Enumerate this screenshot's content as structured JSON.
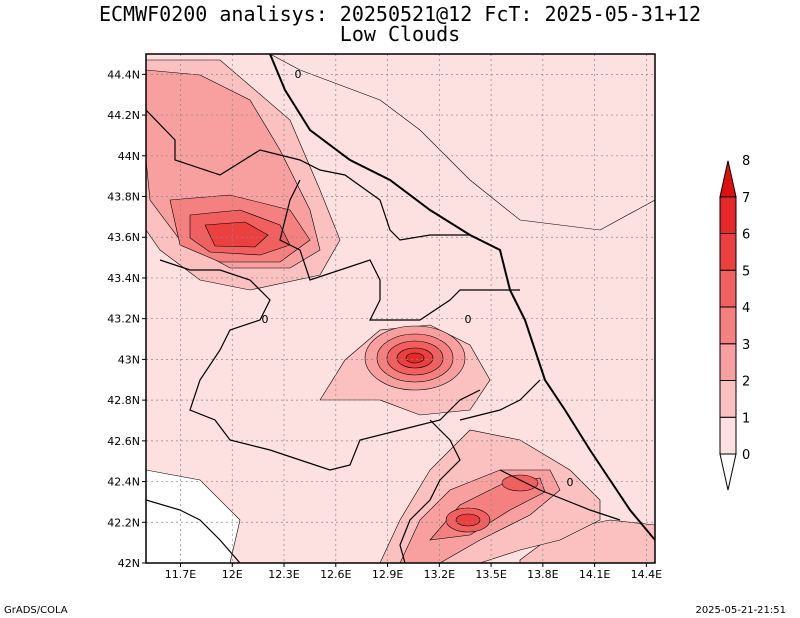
{
  "title": {
    "line1": "ECMWF0200 analisys: 20250521@12 FcT: 2025-05-31+12",
    "line2": "Low Clouds"
  },
  "footer": {
    "left": "GrADS/COLA",
    "right": "2025-05-21-21:51"
  },
  "map": {
    "lon_range": [
      11.5,
      14.45
    ],
    "lat_range": [
      42.0,
      44.5
    ],
    "lon_ticks": [
      "11.7E",
      "12E",
      "12.3E",
      "12.6E",
      "12.9E",
      "13.2E",
      "13.5E",
      "13.8E",
      "14.1E",
      "14.4E"
    ],
    "lat_ticks": [
      "42N",
      "42.2N",
      "42.4N",
      "42.6N",
      "42.8N",
      "43N",
      "43.2N",
      "43.4N",
      "43.6N",
      "43.8N",
      "44N",
      "44.2N",
      "44.4N"
    ],
    "contour_label": "0"
  },
  "colorbar": {
    "labels": [
      "0",
      "1",
      "2",
      "3",
      "4",
      "5",
      "6",
      "7",
      "8"
    ],
    "colors": [
      "#ffffff",
      "#fde0e0",
      "#fbc0c0",
      "#f8a0a0",
      "#f48080",
      "#f06060",
      "#ec4040",
      "#e62828",
      "#e01010"
    ]
  }
}
